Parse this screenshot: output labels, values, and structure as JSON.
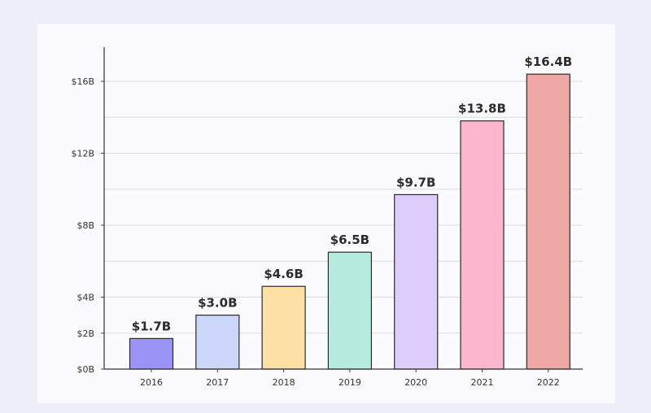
{
  "chart_data": {
    "type": "bar",
    "title": "",
    "xlabel": "",
    "ylabel": "",
    "categories": [
      "2016",
      "2017",
      "2018",
      "2019",
      "2020",
      "2021",
      "2022"
    ],
    "values": [
      1.7,
      3.0,
      4.6,
      6.5,
      9.7,
      13.8,
      16.4
    ],
    "value_labels": [
      "$1.7B",
      "$3.0B",
      "$4.6B",
      "$6.5B",
      "$9.7B",
      "$13.8B",
      "$16.4B"
    ],
    "bar_colors": [
      "#9a94f6",
      "#ccd6f8",
      "#fde0a4",
      "#b5ecdf",
      "#dccdfa",
      "#fcb7cf",
      "#eea7a4"
    ],
    "y_ticks": [
      0,
      2,
      4,
      6,
      8,
      10,
      12,
      14,
      16
    ],
    "y_tick_labels": [
      "$0B",
      "$2B",
      "$4B",
      "",
      "$8B",
      "",
      "$12B",
      "",
      "$16B"
    ],
    "ylim": [
      0,
      17.9
    ],
    "grid": true
  }
}
